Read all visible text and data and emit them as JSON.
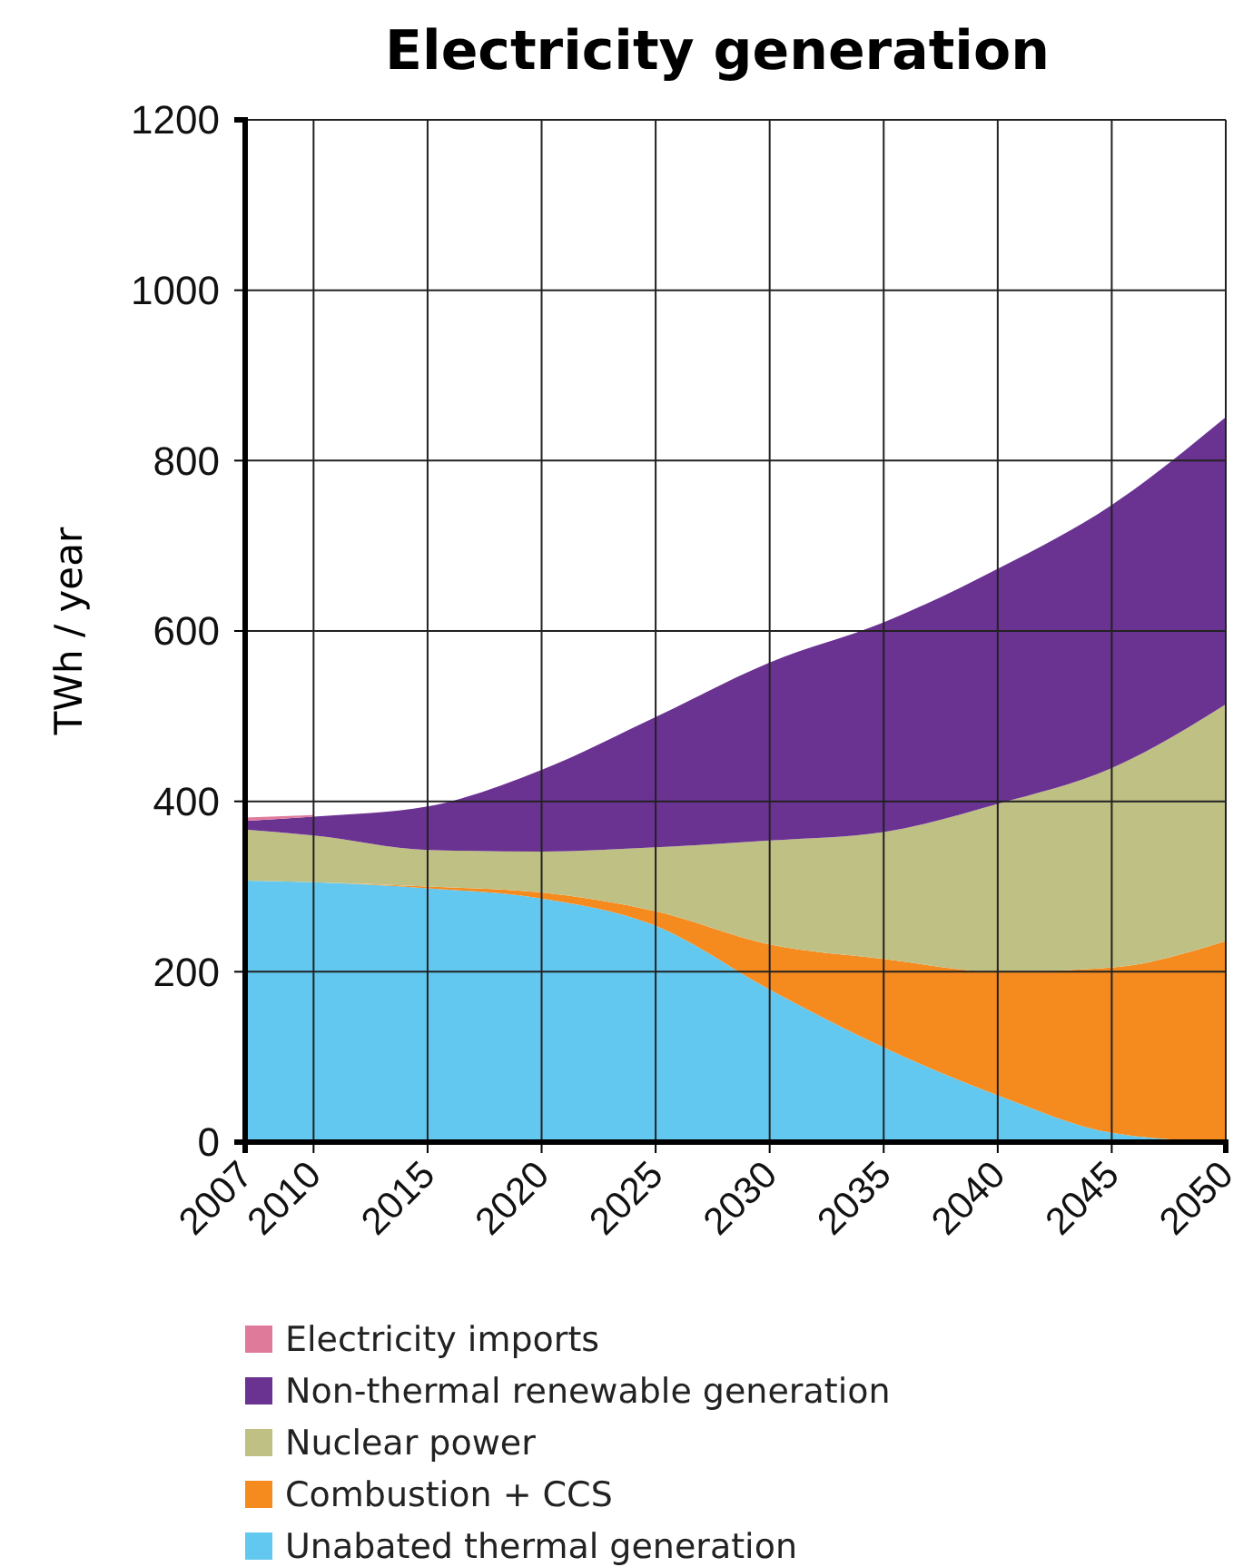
{
  "chart_data": {
    "type": "area",
    "stacked": true,
    "title": "Electricity generation",
    "ylabel": "TWh / year",
    "x": [
      2007,
      2010,
      2015,
      2020,
      2025,
      2030,
      2035,
      2040,
      2045,
      2050
    ],
    "xlim": [
      2007,
      2050
    ],
    "xticks": [
      2007,
      2010,
      2015,
      2020,
      2025,
      2030,
      2035,
      2040,
      2045,
      2050
    ],
    "ylim": [
      0,
      1200
    ],
    "yticks": [
      0,
      200,
      400,
      600,
      800,
      1000,
      1200
    ],
    "grid": true,
    "legend": "bottom",
    "series": [
      {
        "name": "Unabated thermal generation",
        "color": "#62c8f0",
        "values": [
          307,
          305,
          298,
          286,
          254,
          179,
          111,
          55,
          11,
          0
        ]
      },
      {
        "name": "Combustion + CCS",
        "color": "#f58a1f",
        "values": [
          null,
          0,
          2,
          7,
          17,
          53,
          104,
          145,
          194,
          236
        ]
      },
      {
        "name": "Nuclear power",
        "color": "#bfc084",
        "values": [
          60,
          55,
          43,
          48,
          75,
          122,
          149,
          197,
          234,
          278
        ]
      },
      {
        "name": "Non-thermal renewable generation",
        "color": "#6a3291",
        "values": [
          10,
          22,
          51,
          96,
          153,
          209,
          246,
          276,
          309,
          337
        ]
      },
      {
        "name": "Electricity imports",
        "color": "#e07a9a",
        "values": [
          4,
          2,
          null,
          null,
          null,
          null,
          null,
          null,
          null,
          null
        ]
      }
    ]
  }
}
